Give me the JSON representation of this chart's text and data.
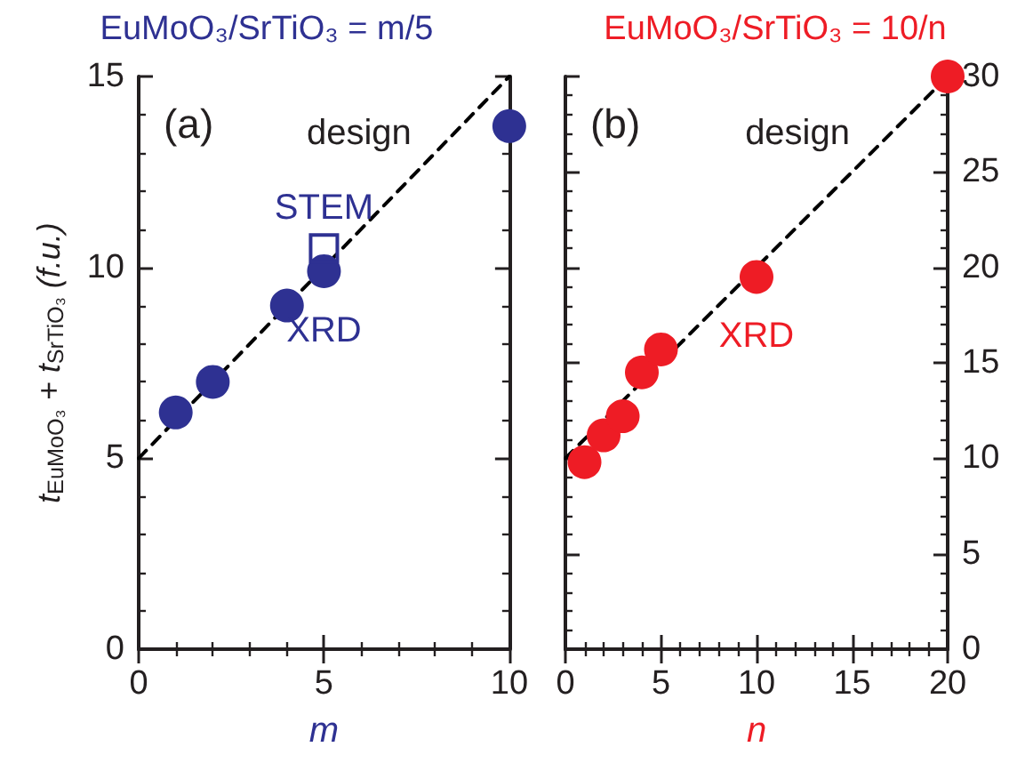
{
  "chart_data": [
    {
      "type": "scatter",
      "title": "EuMoO₃/SrTiO₃ = m/5",
      "xlabel": "m",
      "ylabel": "t$_{EuMoO₃}$ + t$_{SrTiO₃}$ (f.u.)",
      "annotations": [
        "(a)"
      ],
      "xlim": [
        0,
        10
      ],
      "xticks": [
        0,
        5,
        10
      ],
      "ylim": [
        0,
        15
      ],
      "yticks": [
        0,
        5,
        10,
        15
      ],
      "grid": false,
      "legend": false,
      "series": [
        {
          "name": "design",
          "type": "line",
          "line_style": "dashed",
          "marker": "none",
          "color": "#000000",
          "x": [
            0,
            10
          ],
          "values": [
            5,
            15
          ]
        },
        {
          "name": "XRD",
          "marker": "circle",
          "color": "#2e3192",
          "x": [
            1,
            2,
            4,
            5,
            10
          ],
          "values": [
            6.2,
            7.0,
            9.0,
            9.9,
            13.7
          ]
        },
        {
          "name": "STEM",
          "marker": "square",
          "color": "#2e3192",
          "x": [
            5
          ],
          "values": [
            10.5
          ]
        }
      ]
    },
    {
      "type": "scatter",
      "title": "EuMoO₃/SrTiO₃ = 10/n",
      "xlabel": "n",
      "annotations": [
        "(b)"
      ],
      "xlim": [
        0,
        20
      ],
      "xticks": [
        0,
        5,
        10,
        15,
        20
      ],
      "ylim": [
        0,
        30
      ],
      "yticks": [
        0,
        5,
        10,
        15,
        20,
        25,
        30
      ],
      "grid": false,
      "legend": false,
      "series": [
        {
          "name": "design",
          "type": "line",
          "line_style": "dashed",
          "marker": "none",
          "color": "#000000",
          "x": [
            0,
            20
          ],
          "values": [
            10,
            30
          ]
        },
        {
          "name": "XRD",
          "marker": "circle",
          "color": "#ee1c25",
          "x": [
            1,
            2,
            3,
            4,
            5,
            10,
            20
          ],
          "values": [
            9.8,
            11.2,
            12.2,
            14.5,
            15.7,
            19.5,
            30
          ]
        }
      ]
    }
  ]
}
